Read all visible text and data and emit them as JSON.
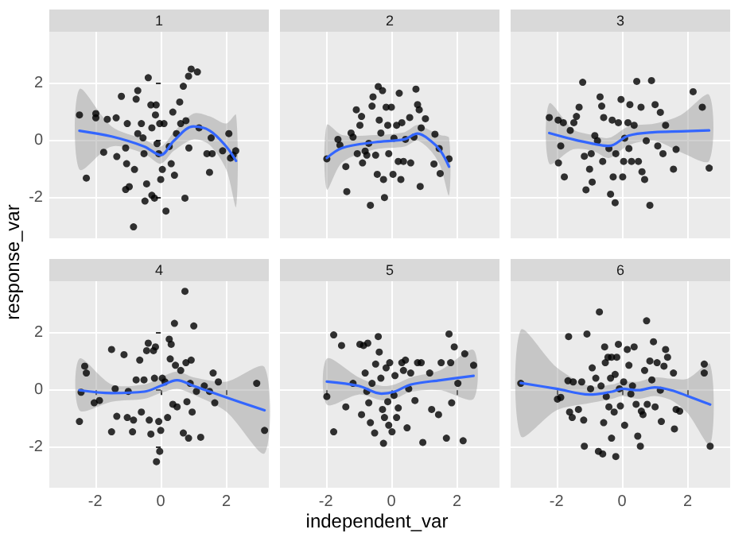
{
  "chart_data": [
    {
      "type": "scatter",
      "title": "1",
      "ylabel": "response_var",
      "xlim": [
        -3.4,
        3.3
      ],
      "ylim": [
        -3.4,
        3.8
      ],
      "xticks": [
        -2,
        0,
        2
      ],
      "yticks": [
        -2,
        0,
        2
      ],
      "grid": true,
      "tick_labels": "y",
      "series": [
        {
          "marker": "circle",
          "color": "#000000",
          "x": [
            -2.48,
            -2.27,
            -1.98,
            -1.98,
            -1.74,
            -1.63,
            -1.36,
            -1.34,
            -1.2,
            -1.07,
            -1.02,
            -1.04,
            -1.07,
            -0.96,
            -0.83,
            -0.8,
            -0.75,
            -0.7,
            -0.7,
            -0.59,
            -0.54,
            -0.51,
            -0.43,
            -0.48,
            -0.38,
            -0.3,
            -0.27,
            -0.27,
            -0.19,
            -0.16,
            -0.14,
            -0.11,
            -0.06,
            -0.03,
            0,
            0.05,
            0.1,
            0.16,
            0.26,
            0.32,
            0.37,
            0.42,
            0.48,
            0.58,
            0.61,
            0.69,
            0.74,
            0.77,
            0.85,
            0.86,
            0.93,
            1.12,
            1.17,
            1.41,
            1.49,
            1.54,
            1.57,
            1.89,
            2.08,
            2.13,
            2.29,
            2.21
          ],
          "values": [
            0.9,
            -1.3,
            0.95,
            0.8,
            -0.4,
            0.75,
            0.8,
            -0.55,
            1.55,
            -0.25,
            0.6,
            -0.8,
            -1.7,
            -1.6,
            -3.0,
            -1.0,
            1.45,
            1.75,
            0.25,
            0.6,
            0.1,
            -0.45,
            -1.5,
            -2.1,
            2.2,
            1.25,
            0.45,
            -1.9,
            -2.0,
            0.9,
            1.25,
            -0.1,
            -0.45,
            0.6,
            -1.35,
            -1.0,
            0.6,
            -2.45,
            -0.2,
            -0.8,
            1.0,
            -1.2,
            0.25,
            1.35,
            0.6,
            1.9,
            -2.0,
            0.7,
            2.25,
            -0.25,
            2.5,
            2.4,
            0.45,
            -0.45,
            -1.1,
            0.1,
            -0.45,
            -0.35,
            0.25,
            -0.6,
            -0.35,
            -0.5
          ]
        },
        {
          "type": "line",
          "color": "#3366ff",
          "x": [
            -2.48,
            -1.5,
            -0.5,
            0,
            0.4,
            1.0,
            1.5,
            2.0,
            2.3
          ],
          "values": [
            0.35,
            0.15,
            -0.2,
            -0.5,
            0.0,
            0.5,
            0.35,
            -0.2,
            -0.7
          ],
          "lower": [
            -1.0,
            -0.2,
            -0.45,
            -0.8,
            -0.35,
            0.05,
            -0.15,
            -1.0,
            -2.3
          ],
          "upper": [
            1.8,
            0.5,
            0.05,
            -0.2,
            0.3,
            0.95,
            0.85,
            0.6,
            0.9
          ]
        }
      ]
    },
    {
      "type": "scatter",
      "title": "2",
      "xlim": [
        -3.4,
        3.3
      ],
      "ylim": [
        -3.4,
        3.8
      ],
      "xticks": [
        -2,
        0,
        2
      ],
      "yticks": [
        -2,
        0,
        2
      ],
      "grid": true,
      "tick_labels": false,
      "series": [
        {
          "marker": "circle",
          "color": "#000000",
          "x": [
            -1.97,
            -1.63,
            -1.57,
            -1.39,
            -1.36,
            -1.23,
            -1.17,
            -1.07,
            -1.04,
            -0.96,
            -0.91,
            -0.88,
            -0.8,
            -0.75,
            -0.69,
            -0.64,
            -0.59,
            -0.56,
            -0.48,
            -0.43,
            -0.4,
            -0.37,
            -0.32,
            -0.27,
            -0.24,
            -0.21,
            -0.16,
            -0.11,
            -0.08,
            0,
            0.05,
            0.08,
            0.16,
            0.21,
            0.24,
            0.29,
            0.32,
            0.37,
            0.43,
            0.56,
            0.59,
            0.69,
            0.75,
            0.8,
            0.85,
            0.88,
            0.91,
            1.04,
            1.33,
            1.3,
            1.46,
            1.49,
            1.76
          ],
          "values": [
            -0.63,
            0.05,
            -0.15,
            -0.9,
            -1.77,
            0.27,
            0.13,
            1.08,
            -0.45,
            0.54,
            0.85,
            -0.77,
            -0.36,
            -0.5,
            -0.09,
            -2.25,
            1.21,
            1.53,
            -0.5,
            -1.17,
            1.89,
            0.72,
            0.27,
            1.75,
            -1.35,
            -1.98,
            1.17,
            0.54,
            -0.45,
            1.17,
            -1.17,
            0.09,
            0.54,
            -0.72,
            1.66,
            -1.35,
            0.63,
            -0.72,
            0.05,
            0.81,
            -0.77,
            0.13,
            1.8,
            1.26,
            1.08,
            -1.59,
            0.45,
            0.77,
            0.23,
            -0.81,
            -0.27,
            -1.14,
            -0.63
          ]
        },
        {
          "type": "line",
          "color": "#3366ff",
          "x": [
            -1.97,
            -1.5,
            -0.5,
            0.4,
            0.8,
            1.2,
            1.5,
            1.76
          ],
          "values": [
            -0.6,
            -0.25,
            -0.05,
            0.05,
            0.25,
            0.0,
            -0.35,
            -0.9
          ],
          "lower": [
            -1.7,
            -0.75,
            -0.3,
            -0.2,
            0.0,
            -0.35,
            -0.9,
            -1.9
          ],
          "upper": [
            0.55,
            0.2,
            0.2,
            0.3,
            0.55,
            0.35,
            0.2,
            0.1
          ]
        }
      ]
    },
    {
      "type": "scatter",
      "title": "3",
      "xlim": [
        -3.4,
        3.3
      ],
      "ylim": [
        -3.4,
        3.8
      ],
      "xticks": [
        -2,
        0,
        2
      ],
      "yticks": [
        -2,
        0,
        2
      ],
      "grid": true,
      "tick_labels": false,
      "series": [
        {
          "marker": "circle",
          "color": "#000000",
          "x": [
            -2.22,
            -1.95,
            -1.87,
            -1.94,
            -1.79,
            -1.76,
            -1.58,
            -1.47,
            -1.39,
            -1.31,
            -1.2,
            -1.15,
            -1.1,
            -0.99,
            -0.94,
            -0.91,
            -0.83,
            -0.75,
            -0.67,
            -0.62,
            -0.59,
            -0.56,
            -0.4,
            -0.35,
            -0.3,
            -0.27,
            -0.21,
            -0.19,
            -0.11,
            -0.03,
            0.02,
            0.05,
            0.08,
            0.18,
            0.21,
            0.24,
            0.29,
            0.37,
            0.45,
            0.5,
            0.58,
            0.61,
            0.69,
            0.74,
            0.85,
            0.9,
            1.01,
            1.09,
            1.17,
            1.25,
            1.33,
            1.57,
            1.65,
            2.17,
            2.45,
            2.66
          ],
          "values": [
            0.81,
            0.72,
            -0.18,
            -0.77,
            0.63,
            -1.26,
            0.36,
            0.63,
            0.85,
            1.17,
            2.04,
            -0.54,
            -1.71,
            -0.99,
            -0.45,
            -1.44,
            0.18,
            0.0,
            1.53,
            1.21,
            -0.72,
            0.81,
            -0.27,
            -1.86,
            0.72,
            -1.26,
            -2.16,
            -0.45,
            0.63,
            1.44,
            -1.26,
            -0.72,
            0.09,
            0.63,
            -0.27,
            1.26,
            -0.72,
            0.54,
            2.07,
            -0.72,
            1.17,
            -1.08,
            -1.35,
            0.0,
            -2.25,
            2.1,
            1.26,
            -0.18,
            0.99,
            -0.45,
            0.54,
            -0.99,
            -0.3,
            1.71,
            1.17,
            -0.95
          ]
        },
        {
          "type": "line",
          "color": "#3366ff",
          "x": [
            -2.22,
            -1.5,
            -0.9,
            -0.4,
            0.2,
            1.0,
            1.8,
            2.66
          ],
          "values": [
            0.27,
            0.05,
            -0.1,
            -0.18,
            0.18,
            0.3,
            0.33,
            0.36
          ],
          "lower": [
            -0.8,
            -0.3,
            -0.35,
            -0.6,
            -0.15,
            0.0,
            -0.4,
            -0.7
          ],
          "upper": [
            1.3,
            0.4,
            0.2,
            0.1,
            0.5,
            0.6,
            0.9,
            1.6
          ]
        }
      ]
    },
    {
      "type": "scatter",
      "title": "4",
      "xlim": [
        -3.4,
        3.3
      ],
      "ylim": [
        -3.4,
        3.8
      ],
      "xticks": [
        -2,
        0,
        2
      ],
      "yticks": [
        -2,
        0,
        2
      ],
      "grid": true,
      "series": [
        {
          "marker": "circle",
          "color": "#000000",
          "x": [
            -2.48,
            -2.43,
            -2.32,
            -2.27,
            -2.03,
            -1.87,
            -1.5,
            -1.5,
            -1.39,
            -1.34,
            -1.12,
            -1.02,
            -0.99,
            -0.86,
            -0.83,
            -0.75,
            -0.64,
            -0.59,
            -0.51,
            -0.43,
            -0.38,
            -0.35,
            -0.3,
            -0.22,
            -0.19,
            -0.16,
            -0.13,
            -0.06,
            -0.03,
            0,
            0.05,
            0.13,
            0.21,
            0.26,
            0.29,
            0.32,
            0.37,
            0.42,
            0.45,
            0.5,
            0.61,
            0.69,
            0.74,
            0.77,
            0.8,
            0.85,
            0.9,
            0.93,
            0.96,
            1.01,
            1.09,
            1.22,
            1.33,
            1.49,
            1.6,
            1.65,
            1.76,
            2.93,
            3.17
          ],
          "values": [
            -1.09,
            -0.07,
            0.84,
            0.6,
            -0.44,
            -0.36,
            1.42,
            -1.45,
            0.05,
            -0.91,
            1.24,
            -0.95,
            -0.04,
            -1.45,
            -1.04,
            0.36,
            1.05,
            -0.76,
            0.36,
            1.38,
            1.64,
            -1.04,
            -1.53,
            1.38,
            0.42,
            1.51,
            -2.49,
            -1.09,
            -2.13,
            -1.4,
            0.42,
            0.29,
            -0.95,
            1.78,
            1.09,
            1.6,
            -0.49,
            2.33,
            0.87,
            -0.58,
            0.69,
            -1.49,
            3.45,
            0.96,
            -0.4,
            -1.67,
            0.24,
            1.05,
            -0.76,
            2.24,
            -0.04,
            -1.64,
            0.15,
            -0.04,
            0.6,
            -0.44,
            0.29,
            0.24,
            -1.4
          ]
        },
        {
          "type": "line",
          "color": "#3366ff",
          "x": [
            -2.48,
            -1.5,
            -0.5,
            0,
            0.5,
            1.0,
            2.0,
            3.17
          ],
          "values": [
            0.0,
            -0.1,
            -0.05,
            0.15,
            0.35,
            0.15,
            -0.25,
            -0.7
          ],
          "lower": [
            -0.7,
            -0.4,
            -0.3,
            -0.1,
            0.05,
            -0.15,
            -0.75,
            -2.2
          ],
          "upper": [
            1.1,
            0.2,
            0.2,
            0.45,
            0.65,
            0.45,
            0.3,
            0.8
          ]
        }
      ]
    },
    {
      "type": "scatter",
      "title": "5",
      "xlabel": "independent_var",
      "xlim": [
        -3.4,
        3.3
      ],
      "ylim": [
        -3.4,
        3.8
      ],
      "xticks": [
        -2,
        0,
        2
      ],
      "yticks": [
        -2,
        0,
        2
      ],
      "grid": true,
      "tick_labels": "x",
      "series": [
        {
          "marker": "circle",
          "color": "#000000",
          "x": [
            -1.97,
            -1.76,
            -1.76,
            -1.52,
            -1.39,
            -1.17,
            -0.96,
            -0.91,
            -0.85,
            -0.8,
            -0.75,
            -0.72,
            -0.69,
            -0.64,
            -0.59,
            -0.51,
            -0.48,
            -0.4,
            -0.37,
            -0.32,
            -0.27,
            -0.24,
            -0.21,
            -0.16,
            -0.11,
            -0.08,
            -0.05,
            0.02,
            0.08,
            0.11,
            0.16,
            0.21,
            0.32,
            0.37,
            0.43,
            0.48,
            0.53,
            0.59,
            0.72,
            0.8,
            0.91,
            0.96,
            1.17,
            1.23,
            1.44,
            1.52,
            1.68,
            1.76,
            1.81,
            1.84,
            1.92,
            2.03,
            2.19,
            2.24,
            2.51
          ],
          "values": [
            -0.22,
            1.93,
            -1.45,
            1.56,
            -0.58,
            0.24,
            1.6,
            -0.85,
            1.56,
            0.6,
            -0.04,
            1.64,
            -0.44,
            -1.13,
            0.24,
            -1.49,
            0.91,
            1.87,
            1.33,
            0.42,
            -0.67,
            -1.85,
            -0.95,
            0.78,
            -0.4,
            -1.22,
            0.96,
            -1.45,
            -0.18,
            0.51,
            -0.95,
            -0.62,
            0.96,
            0.69,
            1.05,
            -1.31,
            0.05,
            0.6,
            -0.36,
            0.96,
            0.96,
            -1.82,
            0.6,
            -0.67,
            -0.85,
            0.96,
            -1.67,
            1.96,
            0.96,
            -0.44,
            1.51,
            0.24,
            -1.76,
            1.27,
            0.87
          ]
        },
        {
          "type": "line",
          "color": "#3366ff",
          "x": [
            -1.97,
            -1.0,
            -0.3,
            0.1,
            0.6,
            1.5,
            2.51
          ],
          "values": [
            0.3,
            0.15,
            -0.12,
            -0.05,
            0.2,
            0.35,
            0.5
          ],
          "lower": [
            -0.5,
            -0.15,
            -0.35,
            -0.3,
            -0.05,
            0.0,
            -0.3
          ],
          "upper": [
            1.1,
            0.45,
            0.15,
            0.2,
            0.45,
            0.7,
            1.4
          ]
        }
      ]
    },
    {
      "type": "scatter",
      "title": "6",
      "xlim": [
        -3.4,
        3.3
      ],
      "ylim": [
        -3.4,
        3.8
      ],
      "xticks": [
        -2,
        0,
        2
      ],
      "yticks": [
        -2,
        0,
        2
      ],
      "grid": true,
      "tick_labels": "x",
      "series": [
        {
          "marker": "circle",
          "color": "#000000",
          "x": [
            -3.09,
            -1.97,
            -1.87,
            -1.65,
            -1.63,
            -1.6,
            -1.52,
            -1.49,
            -1.33,
            -1.23,
            -1.17,
            -1.15,
            -1.07,
            -0.96,
            -0.91,
            -0.8,
            -0.72,
            -0.69,
            -0.64,
            -0.59,
            -0.56,
            -0.53,
            -0.51,
            -0.48,
            -0.43,
            -0.4,
            -0.35,
            -0.32,
            -0.32,
            -0.24,
            -0.21,
            -0.19,
            -0.16,
            -0.11,
            -0.08,
            -0.05,
            0.05,
            0.08,
            0.16,
            0.21,
            0.27,
            0.32,
            0.37,
            0.43,
            0.48,
            0.56,
            0.59,
            0.64,
            0.69,
            0.75,
            0.77,
            0.85,
            0.91,
            0.96,
            1.01,
            1.07,
            1.17,
            1.2,
            1.28,
            1.33,
            1.39,
            1.57,
            1.6,
            1.65,
            1.76,
            2.51,
            2.51,
            2.69
          ],
          "values": [
            0.24,
            -0.31,
            -0.25,
            0.33,
            1.87,
            -0.76,
            -0.95,
            0.29,
            -0.67,
            0.29,
            -1.04,
            -1.95,
            1.96,
            0.05,
            0.78,
            0.42,
            -2.13,
            2.73,
            0.15,
            -2.22,
            -1.13,
            1.51,
            0.96,
            -0.22,
            1.15,
            -0.58,
            0.42,
            1.15,
            -1.67,
            -0.76,
            0.55,
            -2.31,
            1.15,
            1.6,
            0.05,
            -0.55,
            0.29,
            -1.22,
            1.42,
            0.87,
            -0.13,
            0.15,
            1.51,
            -0.49,
            -1.6,
            -1.95,
            -0.73,
            -0.85,
            0.69,
            2.42,
            -0.49,
            1.02,
            0.36,
            1.69,
            -0.58,
            0.96,
            0.0,
            -1.09,
            0.84,
            1.42,
            1.15,
            0.6,
            -1.35,
            -0.67,
            -0.73,
            0.91,
            0.6,
            -1.95
          ]
        },
        {
          "type": "line",
          "color": "#3366ff",
          "x": [
            -3.09,
            -2,
            -1,
            -0.3,
            0,
            0.5,
            1.0,
            1.5,
            2.0,
            2.69
          ],
          "values": [
            0.25,
            0.05,
            -0.15,
            -0.05,
            0.05,
            0.0,
            0.1,
            0.0,
            -0.2,
            -0.5
          ],
          "lower": [
            -1.6,
            -0.7,
            -0.45,
            -0.3,
            -0.2,
            -0.3,
            -0.2,
            -0.35,
            -0.8,
            -1.9
          ],
          "upper": [
            2.1,
            0.8,
            0.15,
            0.2,
            0.3,
            0.3,
            0.45,
            0.4,
            0.4,
            0.9
          ]
        }
      ]
    }
  ]
}
